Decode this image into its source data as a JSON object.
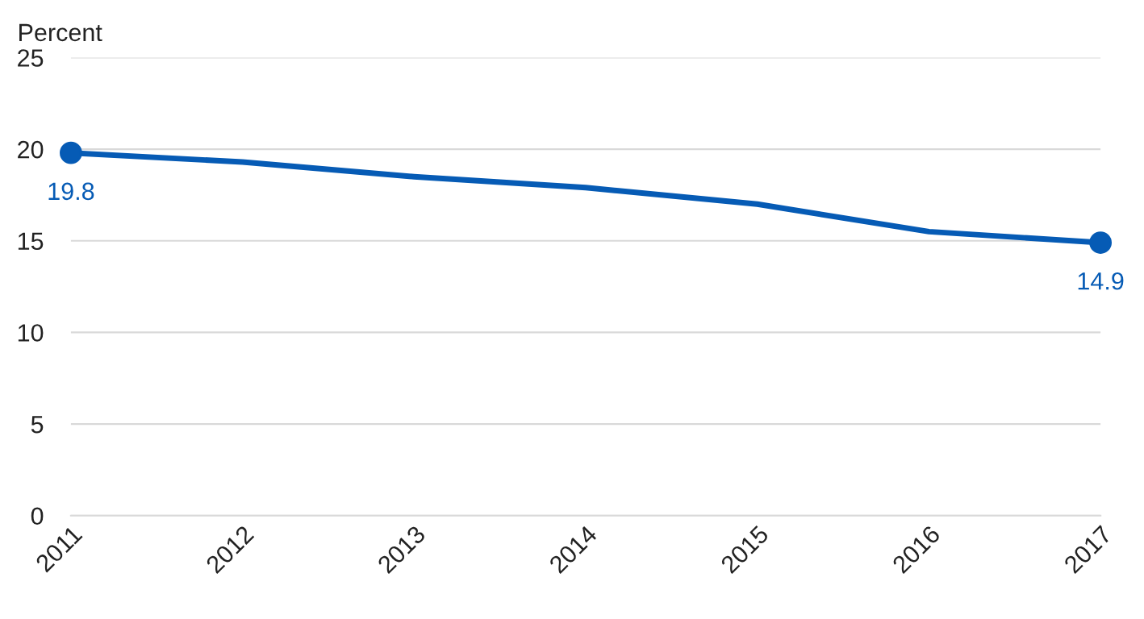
{
  "chart_data": {
    "type": "line",
    "ylabel": "Percent",
    "x": [
      2011,
      2012,
      2013,
      2014,
      2015,
      2016,
      2017
    ],
    "series": [
      {
        "color": "#065bb5",
        "values": [
          19.8,
          19.3,
          18.5,
          17.9,
          17.0,
          15.5,
          14.9
        ],
        "value_labels": [
          "19.8",
          null,
          null,
          null,
          null,
          null,
          "14.9"
        ]
      }
    ],
    "xlim": [
      2011,
      2017
    ],
    "xticks": [
      2011,
      2012,
      2013,
      2014,
      2015,
      2016,
      2017
    ],
    "ylim": [
      0,
      25
    ],
    "yticks": [
      0,
      5,
      10,
      15,
      20,
      25
    ],
    "grid": "y",
    "line_style": "solid"
  }
}
